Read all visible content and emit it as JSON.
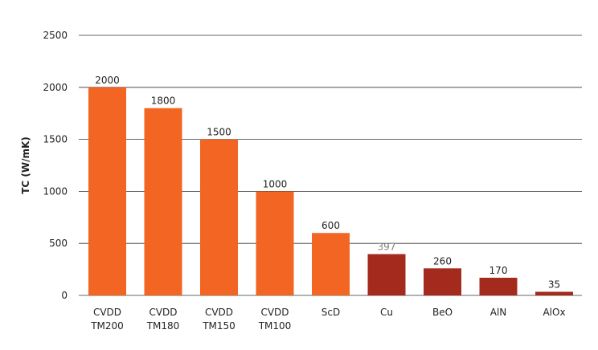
{
  "chart_data": {
    "type": "bar",
    "title": "",
    "xlabel": "",
    "ylabel": "TC (W/mK)",
    "ylim": [
      0,
      2500
    ],
    "yticks": [
      0,
      500,
      1000,
      1500,
      2000,
      2500
    ],
    "grid": true,
    "categories": [
      [
        "CVDD",
        "TM200"
      ],
      [
        "CVDD",
        "TM180"
      ],
      [
        "CVDD",
        "TM150"
      ],
      [
        "CVDD",
        "TM100"
      ],
      [
        "ScD"
      ],
      [
        "Cu"
      ],
      [
        "BeO"
      ],
      [
        "AlN"
      ],
      [
        "AlOx"
      ]
    ],
    "values": [
      2000,
      1800,
      1500,
      1000,
      600,
      397,
      260,
      170,
      35
    ],
    "value_labels": [
      "2000",
      "1800",
      "1500",
      "1000",
      "600",
      "397",
      "260",
      "170",
      "35"
    ],
    "colors": [
      "#f26522",
      "#f26522",
      "#f26522",
      "#f26522",
      "#f26522",
      "#a52a1e",
      "#a52a1e",
      "#a52a1e",
      "#a52a1e"
    ],
    "value_label_colors": [
      "#222222",
      "#222222",
      "#222222",
      "#222222",
      "#222222",
      "#808080",
      "#222222",
      "#222222",
      "#222222"
    ]
  }
}
